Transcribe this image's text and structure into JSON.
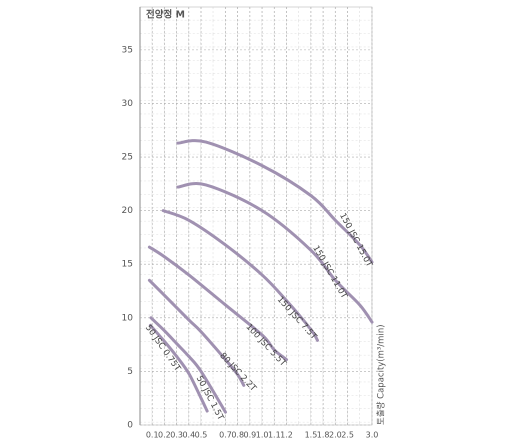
{
  "chart_data": {
    "type": "line",
    "y_label": "전양정 M",
    "x_label": "토출량 Capacity(m³/min)",
    "color": "#a091b1",
    "ylim": [
      0,
      39
    ],
    "yticks": [
      0,
      5,
      10,
      15,
      20,
      25,
      30,
      35
    ],
    "xticks": [
      0.1,
      0.2,
      0.3,
      0.4,
      0.5,
      0.7,
      0.8,
      0.9,
      {
        "value": 1.0,
        "label": "1.0"
      },
      1.1,
      1.2,
      1.5,
      1.8,
      {
        "value": 2.0,
        "label": "2.0"
      },
      2.5,
      {
        "value": 3.0,
        "label": "3.0"
      }
    ],
    "grid": true,
    "series": [
      {
        "name": "150 JSC 15.0T",
        "x": [
          0.31,
          0.54,
          1.0,
          1.5,
          2.0,
          2.75,
          3.0
        ],
        "values": [
          26.3,
          26.4,
          24.2,
          21.4,
          19.1,
          16.8,
          15.2
        ]
      },
      {
        "name": "150 JSC 11.0T",
        "x": [
          0.31,
          0.54,
          1.0,
          1.5,
          2.0,
          2.75,
          3.0
        ],
        "values": [
          22.2,
          22.4,
          20.0,
          16.3,
          13.5,
          11.2,
          9.6
        ]
      },
      {
        "name": "150 JSC 7.5T",
        "x": [
          0.19,
          0.4,
          0.7,
          1.0,
          1.2,
          1.5,
          1.66
        ],
        "values": [
          20.0,
          19.1,
          16.8,
          14.0,
          11.6,
          8.9,
          7.9
        ]
      },
      {
        "name": "100 JSC 5.5T",
        "x": [
          0.077,
          0.2,
          0.4,
          0.7,
          1.0,
          1.1,
          1.2
        ],
        "values": [
          16.6,
          15.7,
          14.0,
          11.2,
          8.4,
          7.0,
          6.1
        ]
      },
      {
        "name": "80 JSC 2.2T",
        "x": [
          0.077,
          0.2,
          0.4,
          0.5,
          0.7,
          0.8,
          0.85
        ],
        "values": [
          13.5,
          12.1,
          9.8,
          8.7,
          6.1,
          4.7,
          3.7
        ]
      },
      {
        "name": "50 JSC 1.5T",
        "x": [
          0.09,
          0.2,
          0.3,
          0.4,
          0.5,
          0.7
        ],
        "values": [
          10.0,
          8.8,
          7.6,
          6.4,
          5.0,
          1.2
        ]
      },
      {
        "name": "50 JSC 0.75T",
        "x": [
          0.085,
          0.2,
          0.3,
          0.4,
          0.5,
          0.55
        ],
        "values": [
          9.3,
          7.8,
          6.4,
          4.8,
          2.5,
          1.3
        ]
      }
    ]
  }
}
